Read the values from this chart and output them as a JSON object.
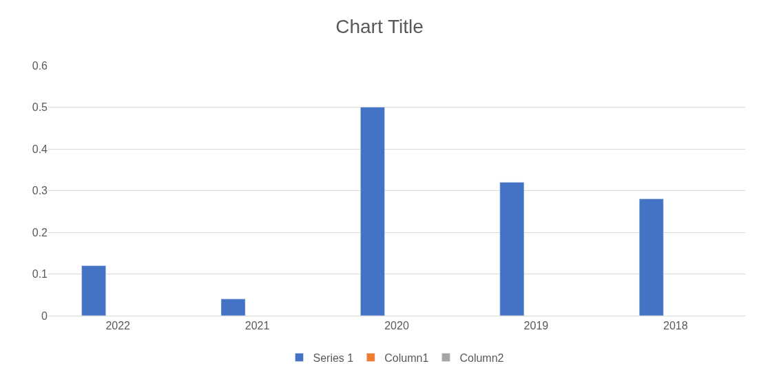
{
  "chart_data": {
    "type": "bar",
    "title": "Chart Title",
    "categories": [
      "2022",
      "2021",
      "2020",
      "2019",
      "2018"
    ],
    "series": [
      {
        "name": "Series 1",
        "color": "#4472c4",
        "values": [
          0.12,
          0.04,
          0.5,
          0.32,
          0.28
        ]
      },
      {
        "name": "Column1",
        "color": "#ed7d31",
        "values": [
          null,
          null,
          null,
          null,
          null
        ]
      },
      {
        "name": "Column2",
        "color": "#a5a5a5",
        "values": [
          null,
          null,
          null,
          null,
          null
        ]
      }
    ],
    "ylim": [
      0,
      0.6
    ],
    "yticks": [
      0,
      0.1,
      0.2,
      0.3,
      0.4,
      0.5,
      0.6
    ],
    "grid": "y",
    "legend": "bottom"
  }
}
